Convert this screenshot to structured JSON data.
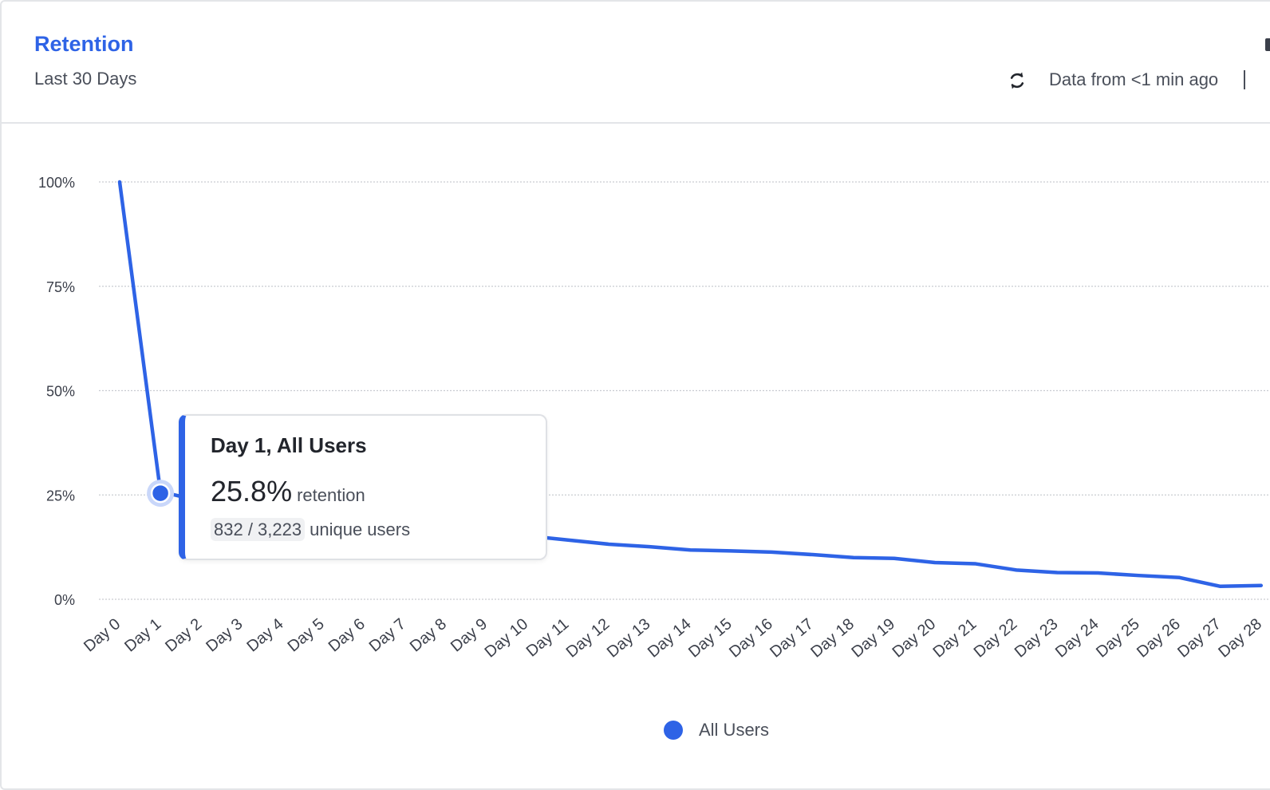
{
  "header": {
    "title": "Retention",
    "subtitle": "Last 30 Days",
    "freshness": "Data from <1 min ago",
    "refresh_icon": "refresh-icon"
  },
  "tooltip": {
    "title": "Day 1, All Users",
    "value": "25.8%",
    "value_unit": "retention",
    "count": "832 / 3,223",
    "count_label": "unique users"
  },
  "legend": {
    "label": "All Users",
    "color": "#2e63e6"
  },
  "colors": {
    "accent": "#2e63e6",
    "gridline": "#c9ccd1",
    "axis_text": "#3b3f4a"
  },
  "chart_data": {
    "type": "line",
    "title": "",
    "xlabel": "",
    "ylabel": "",
    "ylim": [
      0,
      100
    ],
    "yticks": [
      "0%",
      "25%",
      "50%",
      "75%",
      "100%"
    ],
    "ytick_values": [
      0,
      25,
      50,
      75,
      100
    ],
    "grid": true,
    "legend_position": "bottom-center",
    "categories": [
      "Day 0",
      "Day 1",
      "Day 2",
      "Day 3",
      "Day 4",
      "Day 5",
      "Day 6",
      "Day 7",
      "Day 8",
      "Day 9",
      "Day 10",
      "Day 11",
      "Day 12",
      "Day 13",
      "Day 14",
      "Day 15",
      "Day 16",
      "Day 17",
      "Day 18",
      "Day 19",
      "Day 20",
      "Day 21",
      "Day 22",
      "Day 23",
      "Day 24",
      "Day 25",
      "Day 26",
      "Day 27",
      "Day 28"
    ],
    "series": [
      {
        "name": "All Users",
        "values": [
          100,
          25.8,
          23.5,
          21.5,
          20,
          19,
          18,
          17,
          16.5,
          16,
          15.2,
          14.2,
          13.2,
          12.6,
          11.8,
          11.6,
          11.3,
          10.7,
          10,
          9.8,
          8.8,
          8.5,
          7,
          6.4,
          6.3,
          5.7,
          5.2,
          3.1,
          3.3
        ]
      }
    ],
    "highlighted_point": {
      "category": "Day 1",
      "value": 25.8
    }
  }
}
